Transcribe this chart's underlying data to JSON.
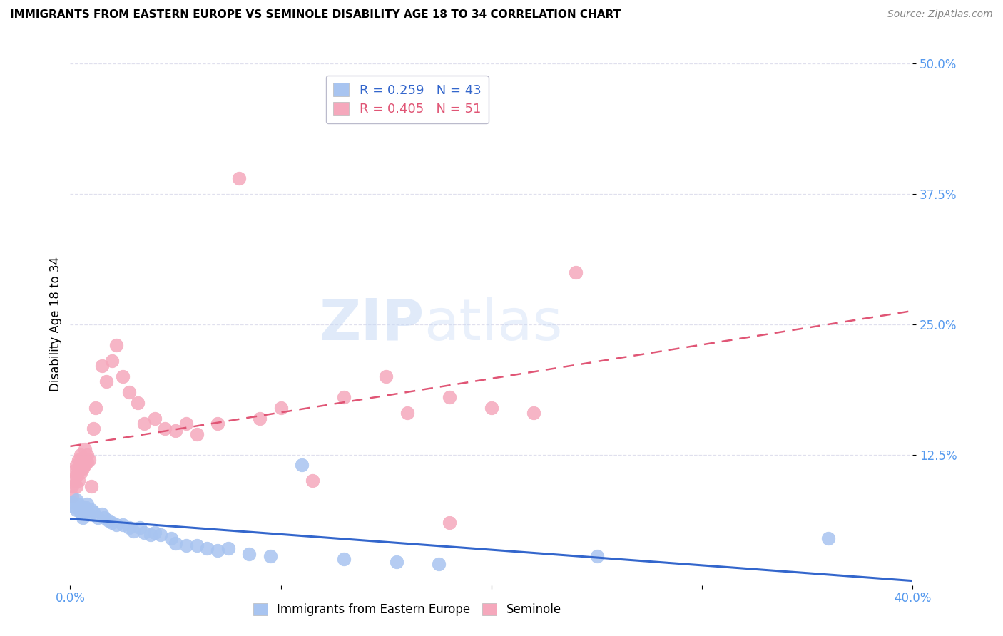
{
  "title": "IMMIGRANTS FROM EASTERN EUROPE VS SEMINOLE DISABILITY AGE 18 TO 34 CORRELATION CHART",
  "source": "Source: ZipAtlas.com",
  "ylabel": "Disability Age 18 to 34",
  "xlim": [
    0.0,
    0.4
  ],
  "ylim": [
    0.0,
    0.5
  ],
  "xticks": [
    0.0,
    0.1,
    0.2,
    0.3,
    0.4
  ],
  "xtick_labels": [
    "0.0%",
    "",
    "",
    "",
    "40.0%"
  ],
  "ytick_labels": [
    "50.0%",
    "37.5%",
    "25.0%",
    "12.5%"
  ],
  "yticks": [
    0.5,
    0.375,
    0.25,
    0.125
  ],
  "blue_R": 0.259,
  "blue_N": 43,
  "pink_R": 0.405,
  "pink_N": 51,
  "blue_color": "#a8c4f0",
  "pink_color": "#f5a8bc",
  "blue_line_color": "#3366cc",
  "pink_line_color": "#e05575",
  "axis_color": "#5599ee",
  "grid_color": "#e0e0ee",
  "blue_points_x": [
    0.001,
    0.002,
    0.003,
    0.003,
    0.004,
    0.005,
    0.006,
    0.006,
    0.007,
    0.008,
    0.008,
    0.009,
    0.01,
    0.011,
    0.013,
    0.015,
    0.016,
    0.018,
    0.02,
    0.022,
    0.025,
    0.028,
    0.03,
    0.033,
    0.035,
    0.038,
    0.04,
    0.043,
    0.048,
    0.05,
    0.055,
    0.06,
    0.065,
    0.07,
    0.075,
    0.085,
    0.095,
    0.11,
    0.13,
    0.155,
    0.175,
    0.25,
    0.36
  ],
  "blue_points_y": [
    0.08,
    0.075,
    0.082,
    0.072,
    0.078,
    0.07,
    0.075,
    0.065,
    0.075,
    0.07,
    0.078,
    0.068,
    0.072,
    0.07,
    0.065,
    0.068,
    0.065,
    0.062,
    0.06,
    0.058,
    0.058,
    0.055,
    0.052,
    0.055,
    0.05,
    0.048,
    0.05,
    0.048,
    0.045,
    0.04,
    0.038,
    0.038,
    0.035,
    0.033,
    0.035,
    0.03,
    0.028,
    0.115,
    0.025,
    0.022,
    0.02,
    0.028,
    0.045
  ],
  "pink_points_x": [
    0.001,
    0.001,
    0.002,
    0.002,
    0.003,
    0.003,
    0.003,
    0.004,
    0.004,
    0.004,
    0.005,
    0.005,
    0.005,
    0.006,
    0.006,
    0.006,
    0.007,
    0.007,
    0.007,
    0.008,
    0.008,
    0.009,
    0.01,
    0.011,
    0.012,
    0.015,
    0.017,
    0.02,
    0.022,
    0.025,
    0.028,
    0.032,
    0.035,
    0.04,
    0.045,
    0.05,
    0.055,
    0.06,
    0.07,
    0.08,
    0.09,
    0.1,
    0.115,
    0.13,
    0.15,
    0.16,
    0.18,
    0.2,
    0.22,
    0.24,
    0.18
  ],
  "pink_points_y": [
    0.085,
    0.095,
    0.1,
    0.11,
    0.105,
    0.115,
    0.095,
    0.12,
    0.11,
    0.1,
    0.118,
    0.125,
    0.108,
    0.122,
    0.112,
    0.118,
    0.12,
    0.13,
    0.115,
    0.125,
    0.118,
    0.12,
    0.095,
    0.15,
    0.17,
    0.21,
    0.195,
    0.215,
    0.23,
    0.2,
    0.185,
    0.175,
    0.155,
    0.16,
    0.15,
    0.148,
    0.155,
    0.145,
    0.155,
    0.39,
    0.16,
    0.17,
    0.1,
    0.18,
    0.2,
    0.165,
    0.18,
    0.17,
    0.165,
    0.3,
    0.06
  ]
}
